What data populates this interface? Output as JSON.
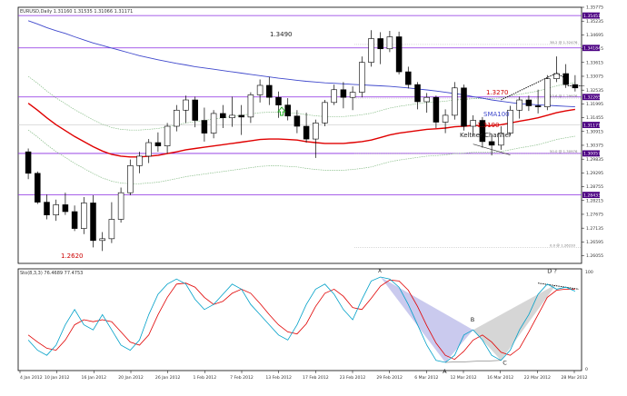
{
  "chart_data": {
    "type": "candlestick",
    "main": {
      "symbol_header": "EURUSD,Daily 1.31160 1.31535 1.31066 1.31171",
      "ylim": [
        1.25755,
        1.35775
      ],
      "y_ticks": [
        1.35775,
        1.35235,
        1.34695,
        1.34155,
        1.33615,
        1.33075,
        1.32535,
        1.31995,
        1.31455,
        1.30915,
        1.30375,
        1.29835,
        1.29295,
        1.28755,
        1.28215,
        1.27675,
        1.27135,
        1.26595,
        1.26055,
        1.25515
      ],
      "price_boxes": [
        {
          "label": "1.35451",
          "value": 1.35451
        },
        {
          "label": "1.34184",
          "value": 1.34184
        },
        {
          "label": "1.31171",
          "value": 1.31171
        },
        {
          "label": "1.32265",
          "value": 1.32265
        },
        {
          "label": "1.30057",
          "value": 1.30057
        },
        {
          "label": "1.28433",
          "value": 1.28433
        }
      ],
      "fib_labels": [
        {
          "text": "38.2 @ 1.32476",
          "value": 1.3432
        },
        {
          "text": "23.6 @ 1.29976",
          "value": 1.3222
        },
        {
          "text": "50.0 @ 1.30976",
          "value": 1.3005
        },
        {
          "text": "0.0 @ 1.26233",
          "value": 1.2638
        }
      ],
      "annotations": [
        "1.3490",
        "1.3270",
        "SMA100",
        "1.3190",
        "Keltner Channel",
        "1.2620"
      ],
      "candles": [
        {
          "date": "4 Jan 2012",
          "o": 1.3012,
          "h": 1.3025,
          "l": 1.2905,
          "c": 1.2928
        },
        {
          "date": "5 Jan 2012",
          "o": 1.2928,
          "h": 1.2935,
          "l": 1.2808,
          "c": 1.2815
        },
        {
          "date": "6 Jan 2012",
          "o": 1.2815,
          "h": 1.2845,
          "l": 1.2748,
          "c": 1.2765
        },
        {
          "date": "9 Jan 2012",
          "o": 1.2765,
          "h": 1.2825,
          "l": 1.2742,
          "c": 1.2805
        },
        {
          "date": "10 Jan 2012",
          "o": 1.2805,
          "h": 1.2852,
          "l": 1.2765,
          "c": 1.2778
        },
        {
          "date": "11 Jan 2012",
          "o": 1.2778,
          "h": 1.2802,
          "l": 1.2702,
          "c": 1.2712
        },
        {
          "date": "12 Jan 2012",
          "o": 1.2712,
          "h": 1.2835,
          "l": 1.269,
          "c": 1.2812
        },
        {
          "date": "13 Jan 2012",
          "o": 1.2812,
          "h": 1.2842,
          "l": 1.2638,
          "c": 1.2665
        },
        {
          "date": "16 Jan 2012",
          "o": 1.2665,
          "h": 1.2698,
          "l": 1.2624,
          "c": 1.2672
        },
        {
          "date": "17 Jan 2012",
          "o": 1.2672,
          "h": 1.2815,
          "l": 1.2655,
          "c": 1.2748
        },
        {
          "date": "18 Jan 2012",
          "o": 1.2748,
          "h": 1.2872,
          "l": 1.2735,
          "c": 1.2852
        },
        {
          "date": "19 Jan 2012",
          "o": 1.2852,
          "h": 1.2982,
          "l": 1.2842,
          "c": 1.2958
        },
        {
          "date": "20 Jan 2012",
          "o": 1.2958,
          "h": 1.3012,
          "l": 1.2928,
          "c": 1.2995
        },
        {
          "date": "23 Jan 2012",
          "o": 1.2995,
          "h": 1.3062,
          "l": 1.2968,
          "c": 1.3048
        },
        {
          "date": "24 Jan 2012",
          "o": 1.3048,
          "h": 1.3088,
          "l": 1.3012,
          "c": 1.3035
        },
        {
          "date": "25 Jan 2012",
          "o": 1.3035,
          "h": 1.3125,
          "l": 1.3005,
          "c": 1.3112
        },
        {
          "date": "26 Jan 2012",
          "o": 1.3112,
          "h": 1.3195,
          "l": 1.3092,
          "c": 1.3175
        },
        {
          "date": "27 Jan 2012",
          "o": 1.3175,
          "h": 1.3232,
          "l": 1.3125,
          "c": 1.3215
        },
        {
          "date": "30 Jan 2012",
          "o": 1.3215,
          "h": 1.3228,
          "l": 1.3108,
          "c": 1.3135
        },
        {
          "date": "31 Jan 2012",
          "o": 1.3135,
          "h": 1.3185,
          "l": 1.3052,
          "c": 1.3085
        },
        {
          "date": "1 Feb 2012",
          "o": 1.3085,
          "h": 1.3175,
          "l": 1.3065,
          "c": 1.3162
        },
        {
          "date": "2 Feb 2012",
          "o": 1.3162,
          "h": 1.3195,
          "l": 1.3105,
          "c": 1.3145
        },
        {
          "date": "3 Feb 2012",
          "o": 1.3145,
          "h": 1.3228,
          "l": 1.311,
          "c": 1.3155
        },
        {
          "date": "6 Feb 2012",
          "o": 1.3155,
          "h": 1.3195,
          "l": 1.3078,
          "c": 1.3148
        },
        {
          "date": "7 Feb 2012",
          "o": 1.3148,
          "h": 1.3245,
          "l": 1.3125,
          "c": 1.3235
        },
        {
          "date": "8 Feb 2012",
          "o": 1.3235,
          "h": 1.3295,
          "l": 1.3205,
          "c": 1.3272
        },
        {
          "date": "9 Feb 2012",
          "o": 1.3272,
          "h": 1.3305,
          "l": 1.3195,
          "c": 1.3225
        },
        {
          "date": "10 Feb 2012",
          "o": 1.3225,
          "h": 1.3248,
          "l": 1.3145,
          "c": 1.3195
        },
        {
          "date": "13 Feb 2012",
          "o": 1.3195,
          "h": 1.3222,
          "l": 1.3135,
          "c": 1.3152
        },
        {
          "date": "14 Feb 2012",
          "o": 1.3152,
          "h": 1.3175,
          "l": 1.3085,
          "c": 1.3112
        },
        {
          "date": "15 Feb 2012",
          "o": 1.3112,
          "h": 1.3165,
          "l": 1.3048,
          "c": 1.3062
        },
        {
          "date": "16 Feb 2012",
          "o": 1.3062,
          "h": 1.3138,
          "l": 1.2988,
          "c": 1.3125
        },
        {
          "date": "17 Feb 2012",
          "o": 1.3125,
          "h": 1.3215,
          "l": 1.3112,
          "c": 1.3205
        },
        {
          "date": "20 Feb 2012",
          "o": 1.3205,
          "h": 1.3275,
          "l": 1.3195,
          "c": 1.3255
        },
        {
          "date": "21 Feb 2012",
          "o": 1.3255,
          "h": 1.3285,
          "l": 1.3182,
          "c": 1.3225
        },
        {
          "date": "22 Feb 2012",
          "o": 1.3225,
          "h": 1.3268,
          "l": 1.3175,
          "c": 1.3245
        },
        {
          "date": "23 Feb 2012",
          "o": 1.3245,
          "h": 1.3385,
          "l": 1.3225,
          "c": 1.3362
        },
        {
          "date": "24 Feb 2012",
          "o": 1.3362,
          "h": 1.3488,
          "l": 1.3345,
          "c": 1.3455
        },
        {
          "date": "27 Feb 2012",
          "o": 1.3455,
          "h": 1.348,
          "l": 1.3355,
          "c": 1.3415
        },
        {
          "date": "28 Feb 2012",
          "o": 1.3415,
          "h": 1.3485,
          "l": 1.3402,
          "c": 1.3462
        },
        {
          "date": "29 Feb 2012",
          "o": 1.3462,
          "h": 1.3482,
          "l": 1.3315,
          "c": 1.3325
        },
        {
          "date": "1 Mar 2012",
          "o": 1.3325,
          "h": 1.3345,
          "l": 1.326,
          "c": 1.3275
        },
        {
          "date": "2 Mar 2012",
          "o": 1.3275,
          "h": 1.3285,
          "l": 1.3178,
          "c": 1.3208
        },
        {
          "date": "5 Mar 2012",
          "o": 1.3208,
          "h": 1.3242,
          "l": 1.3165,
          "c": 1.3225
        },
        {
          "date": "6 Mar 2012",
          "o": 1.3225,
          "h": 1.3232,
          "l": 1.3105,
          "c": 1.3128
        },
        {
          "date": "7 Mar 2012",
          "o": 1.3128,
          "h": 1.3178,
          "l": 1.3085,
          "c": 1.3155
        },
        {
          "date": "8 Mar 2012",
          "o": 1.3155,
          "h": 1.3285,
          "l": 1.3138,
          "c": 1.3262
        },
        {
          "date": "9 Mar 2012",
          "o": 1.3262,
          "h": 1.3275,
          "l": 1.3095,
          "c": 1.3112
        },
        {
          "date": "12 Mar 2012",
          "o": 1.3112,
          "h": 1.3155,
          "l": 1.3072,
          "c": 1.3135
        },
        {
          "date": "13 Mar 2012",
          "o": 1.3135,
          "h": 1.3148,
          "l": 1.3028,
          "c": 1.3052
        },
        {
          "date": "14 Mar 2012",
          "o": 1.3052,
          "h": 1.3078,
          "l": 1.2998,
          "c": 1.3038
        },
        {
          "date": "15 Mar 2012",
          "o": 1.3038,
          "h": 1.3112,
          "l": 1.302,
          "c": 1.3085
        },
        {
          "date": "16 Mar 2012",
          "o": 1.3085,
          "h": 1.3192,
          "l": 1.3075,
          "c": 1.3175
        },
        {
          "date": "19 Mar 2012",
          "o": 1.3175,
          "h": 1.3228,
          "l": 1.3142,
          "c": 1.3215
        },
        {
          "date": "20 Mar 2012",
          "o": 1.3215,
          "h": 1.3232,
          "l": 1.3172,
          "c": 1.3192
        },
        {
          "date": "21 Mar 2012",
          "o": 1.3192,
          "h": 1.3255,
          "l": 1.3162,
          "c": 1.3188
        },
        {
          "date": "22 Mar 2012",
          "o": 1.3188,
          "h": 1.3312,
          "l": 1.3175,
          "c": 1.3298
        },
        {
          "date": "23 Mar 2012",
          "o": 1.3298,
          "h": 1.3385,
          "l": 1.3285,
          "c": 1.3318
        },
        {
          "date": "26 Mar 2012",
          "o": 1.3318,
          "h": 1.3355,
          "l": 1.3262,
          "c": 1.3275
        },
        {
          "date": "27 Mar 2012",
          "o": 1.3275,
          "h": 1.3312,
          "l": 1.3248,
          "c": 1.3262
        }
      ],
      "sma100": [
        1.3525,
        1.3512,
        1.3498,
        1.3486,
        1.3475,
        1.3462,
        1.345,
        1.3438,
        1.3428,
        1.3418,
        1.3408,
        1.3398,
        1.3388,
        1.338,
        1.3372,
        1.3365,
        1.3358,
        1.3352,
        1.3345,
        1.334,
        1.3335,
        1.333,
        1.3325,
        1.332,
        1.3315,
        1.331,
        1.3305,
        1.33,
        1.3296,
        1.3292,
        1.3288,
        1.3285,
        1.3282,
        1.328,
        1.3278,
        1.3276,
        1.3274,
        1.3272,
        1.327,
        1.3268,
        1.3265,
        1.3262,
        1.3258,
        1.3254,
        1.325,
        1.3245,
        1.324,
        1.3235,
        1.3228,
        1.3222,
        1.3215,
        1.321,
        1.3205,
        1.32,
        1.3198,
        1.3196,
        1.3194,
        1.3192,
        1.319,
        1.3188
      ],
      "ema_red": [
        1.3202,
        1.3175,
        1.3145,
        1.3118,
        1.3095,
        1.3072,
        1.3052,
        1.3032,
        1.3015,
        1.3002,
        1.2995,
        1.2992,
        1.2992,
        1.2995,
        1.2998,
        1.3005,
        1.3012,
        1.302,
        1.3025,
        1.303,
        1.3035,
        1.304,
        1.3045,
        1.305,
        1.3055,
        1.306,
        1.3062,
        1.3062,
        1.306,
        1.3058,
        1.3052,
        1.3048,
        1.3045,
        1.3045,
        1.3045,
        1.3048,
        1.3052,
        1.3058,
        1.3068,
        1.3078,
        1.3085,
        1.309,
        1.3095,
        1.31,
        1.3102,
        1.3105,
        1.311,
        1.3112,
        1.3115,
        1.3115,
        1.3115,
        1.3118,
        1.3125,
        1.3132,
        1.3138,
        1.3145,
        1.3155,
        1.3165,
        1.3172,
        1.3178
      ]
    },
    "oscillator": {
      "label": "Sto(8,3,3) 76.4689 77.4753",
      "ylim": [
        0,
        100
      ],
      "y_ticks": [
        "100",
        "0"
      ],
      "main": [
        30,
        20,
        15,
        25,
        45,
        60,
        45,
        40,
        55,
        40,
        25,
        20,
        30,
        55,
        75,
        85,
        90,
        85,
        70,
        60,
        65,
        75,
        85,
        80,
        65,
        55,
        45,
        35,
        30,
        45,
        65,
        80,
        85,
        75,
        60,
        50,
        70,
        88,
        92,
        90,
        82,
        65,
        45,
        25,
        10,
        8,
        15,
        35,
        40,
        30,
        15,
        10,
        20,
        40,
        55,
        75,
        85,
        80,
        82,
        78
      ],
      "signal": [
        35,
        28,
        22,
        20,
        30,
        45,
        50,
        48,
        50,
        48,
        38,
        28,
        25,
        35,
        55,
        72,
        85,
        86,
        82,
        72,
        65,
        68,
        76,
        80,
        76,
        66,
        55,
        45,
        38,
        36,
        46,
        63,
        76,
        80,
        73,
        62,
        60,
        71,
        83,
        89,
        88,
        79,
        63,
        44,
        27,
        15,
        11,
        19,
        30,
        35,
        28,
        18,
        15,
        22,
        38,
        55,
        72,
        79,
        80,
        80
      ],
      "annotations": [
        "X",
        "B",
        "A",
        "C",
        "D ?"
      ]
    },
    "x_ticks": [
      "4 Jan 2012",
      "10 Jan 2012",
      "16 Jan 2012",
      "20 Jan 2012",
      "26 Jan 2012",
      "1 Feb 2012",
      "7 Feb 2012",
      "13 Feb 2012",
      "17 Feb 2012",
      "23 Feb 2012",
      "29 Feb 2012",
      "6 Mar 2012",
      "12 Mar 2012",
      "16 Mar 2012",
      "22 Mar 2012",
      "28 Mar 2012"
    ],
    "colors": {
      "bull": "#ffffff",
      "bear": "#000000",
      "sma100": "#3f48cc",
      "ema_red": "#e00000",
      "keltner": "#8cbf8c",
      "hline": "#8a2be2",
      "price_box": "#4b0082",
      "stoch_main": "#00a0c8",
      "stoch_signal": "#e00000",
      "pattern_fill": "#b8b8e8",
      "pattern_fill2": "#c8c8c8",
      "annot_red": "#cc0000",
      "annot_blue": "#3f48cc"
    }
  }
}
